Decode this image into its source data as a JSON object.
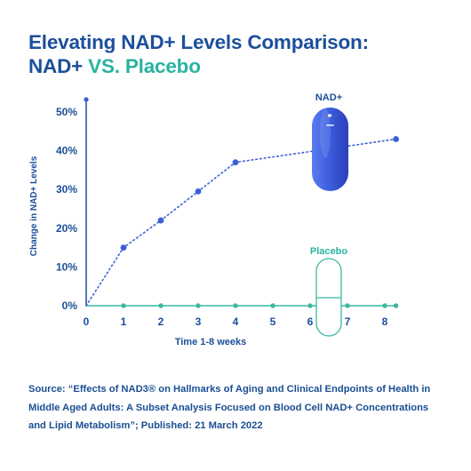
{
  "title": {
    "line1": "Elevating NAD+ Levels Comparison:",
    "line2_part1": "NAD+",
    "line2_part2": " VS. Placebo"
  },
  "source_note": "Source: “Effects of NAD3® on Hallmarks of Aging and Clinical Endpoints of Health in Middle Aged Adults: A Subset Analysis Focused on Blood Cell NAD+ Concentrations and Lipid Metabolism”; Published: 21 March 2022",
  "colors": {
    "nad": "#3b5fd6",
    "placebo": "#3cb89f",
    "axis": "#1d4f9a",
    "text_dark": "#1b4f9a",
    "text_teal": "#2ab3a0"
  },
  "chart_data": {
    "type": "line",
    "title": "Elevating NAD+ Levels Comparison: NAD+ VS. Placebo",
    "xlabel": "Time 1-8 weeks",
    "ylabel": "Change in NAD+ Levels",
    "xlim": [
      0,
      8
    ],
    "ylim": [
      0,
      52
    ],
    "x_ticks": [
      "0",
      "1",
      "2",
      "3",
      "4",
      "5",
      "6",
      "7",
      "8"
    ],
    "y_ticks": [
      "0%",
      "10%",
      "20%",
      "30%",
      "40%",
      "50%"
    ],
    "x": [
      0,
      1,
      2,
      3,
      4,
      8.3
    ],
    "series": [
      {
        "name": "NAD+",
        "x": [
          0,
          1,
          2,
          3,
          4,
          8.3
        ],
        "values": [
          0,
          15,
          22,
          29.5,
          37,
          43
        ]
      },
      {
        "name": "Placebo",
        "x": [
          0,
          1,
          2,
          3,
          4,
          5,
          6,
          7,
          8,
          8.3
        ],
        "values": [
          0,
          0,
          0,
          0,
          0,
          0,
          0,
          0,
          0,
          0
        ]
      }
    ],
    "grid": false,
    "legend": "capsule icons labelled NAD+ (top-right) and Placebo (bottom-right)"
  }
}
